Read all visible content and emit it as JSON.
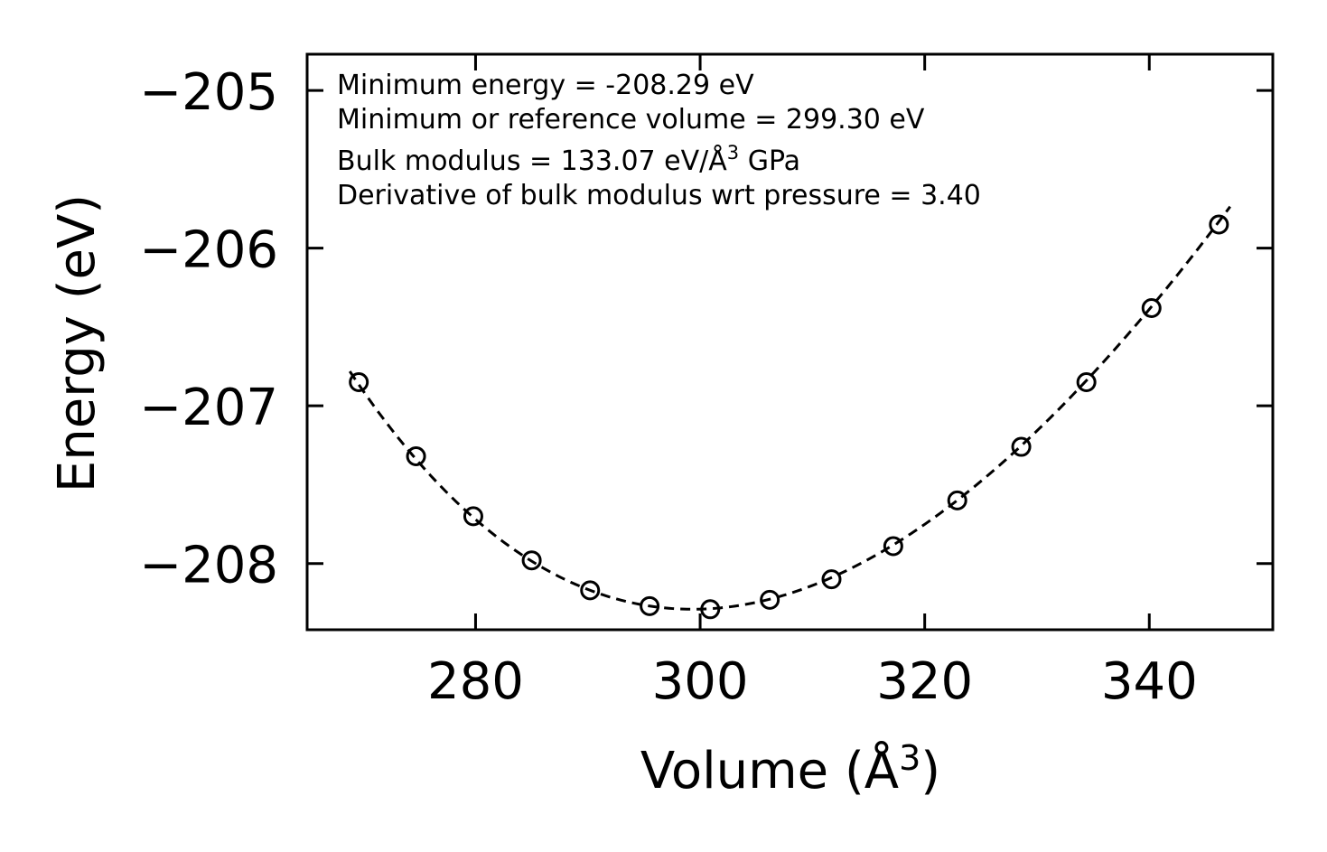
{
  "chart_data": {
    "type": "scatter",
    "title": "",
    "xlabel": "Volume (Å",
    "xlabel_sup": "3",
    "xlabel_close": ")",
    "ylabel": "Energy (eV)",
    "xlim": [
      265,
      351
    ],
    "ylim": [
      -208.42,
      -204.77
    ],
    "xticks": [
      280,
      300,
      320,
      340
    ],
    "yticks": [
      -205,
      -206,
      -207,
      -208
    ],
    "xtick_labels": [
      "280",
      "300",
      "320",
      "340"
    ],
    "ytick_labels": [
      "−205",
      "−206",
      "−207",
      "−208"
    ],
    "grid": false,
    "series": [
      {
        "name": "data",
        "marker": "open-circle",
        "x": [
          269.6,
          274.7,
          279.8,
          285.0,
          290.2,
          295.5,
          300.9,
          306.2,
          311.7,
          317.2,
          322.9,
          328.6,
          334.4,
          340.2,
          346.2
        ],
        "y": [
          -206.85,
          -207.32,
          -207.7,
          -207.98,
          -208.17,
          -208.27,
          -208.29,
          -208.23,
          -208.1,
          -207.89,
          -207.6,
          -207.26,
          -206.85,
          -206.38,
          -205.85
        ]
      },
      {
        "name": "fit",
        "style": "dashed-line",
        "model": "birch-murnaghan",
        "E0": -208.29,
        "V0": 299.3,
        "B_GPa": 133.07,
        "Bp": 3.4,
        "x_range": [
          268.8,
          347.2
        ]
      }
    ],
    "annotations": [
      "Minimum energy = -208.29 eV",
      "Minimum or reference volume = 299.30 eV",
      "Bulk modulus = 133.07 eV/Å",
      "3",
      " GPa",
      "Derivative of bulk modulus wrt pressure = 3.40"
    ]
  }
}
